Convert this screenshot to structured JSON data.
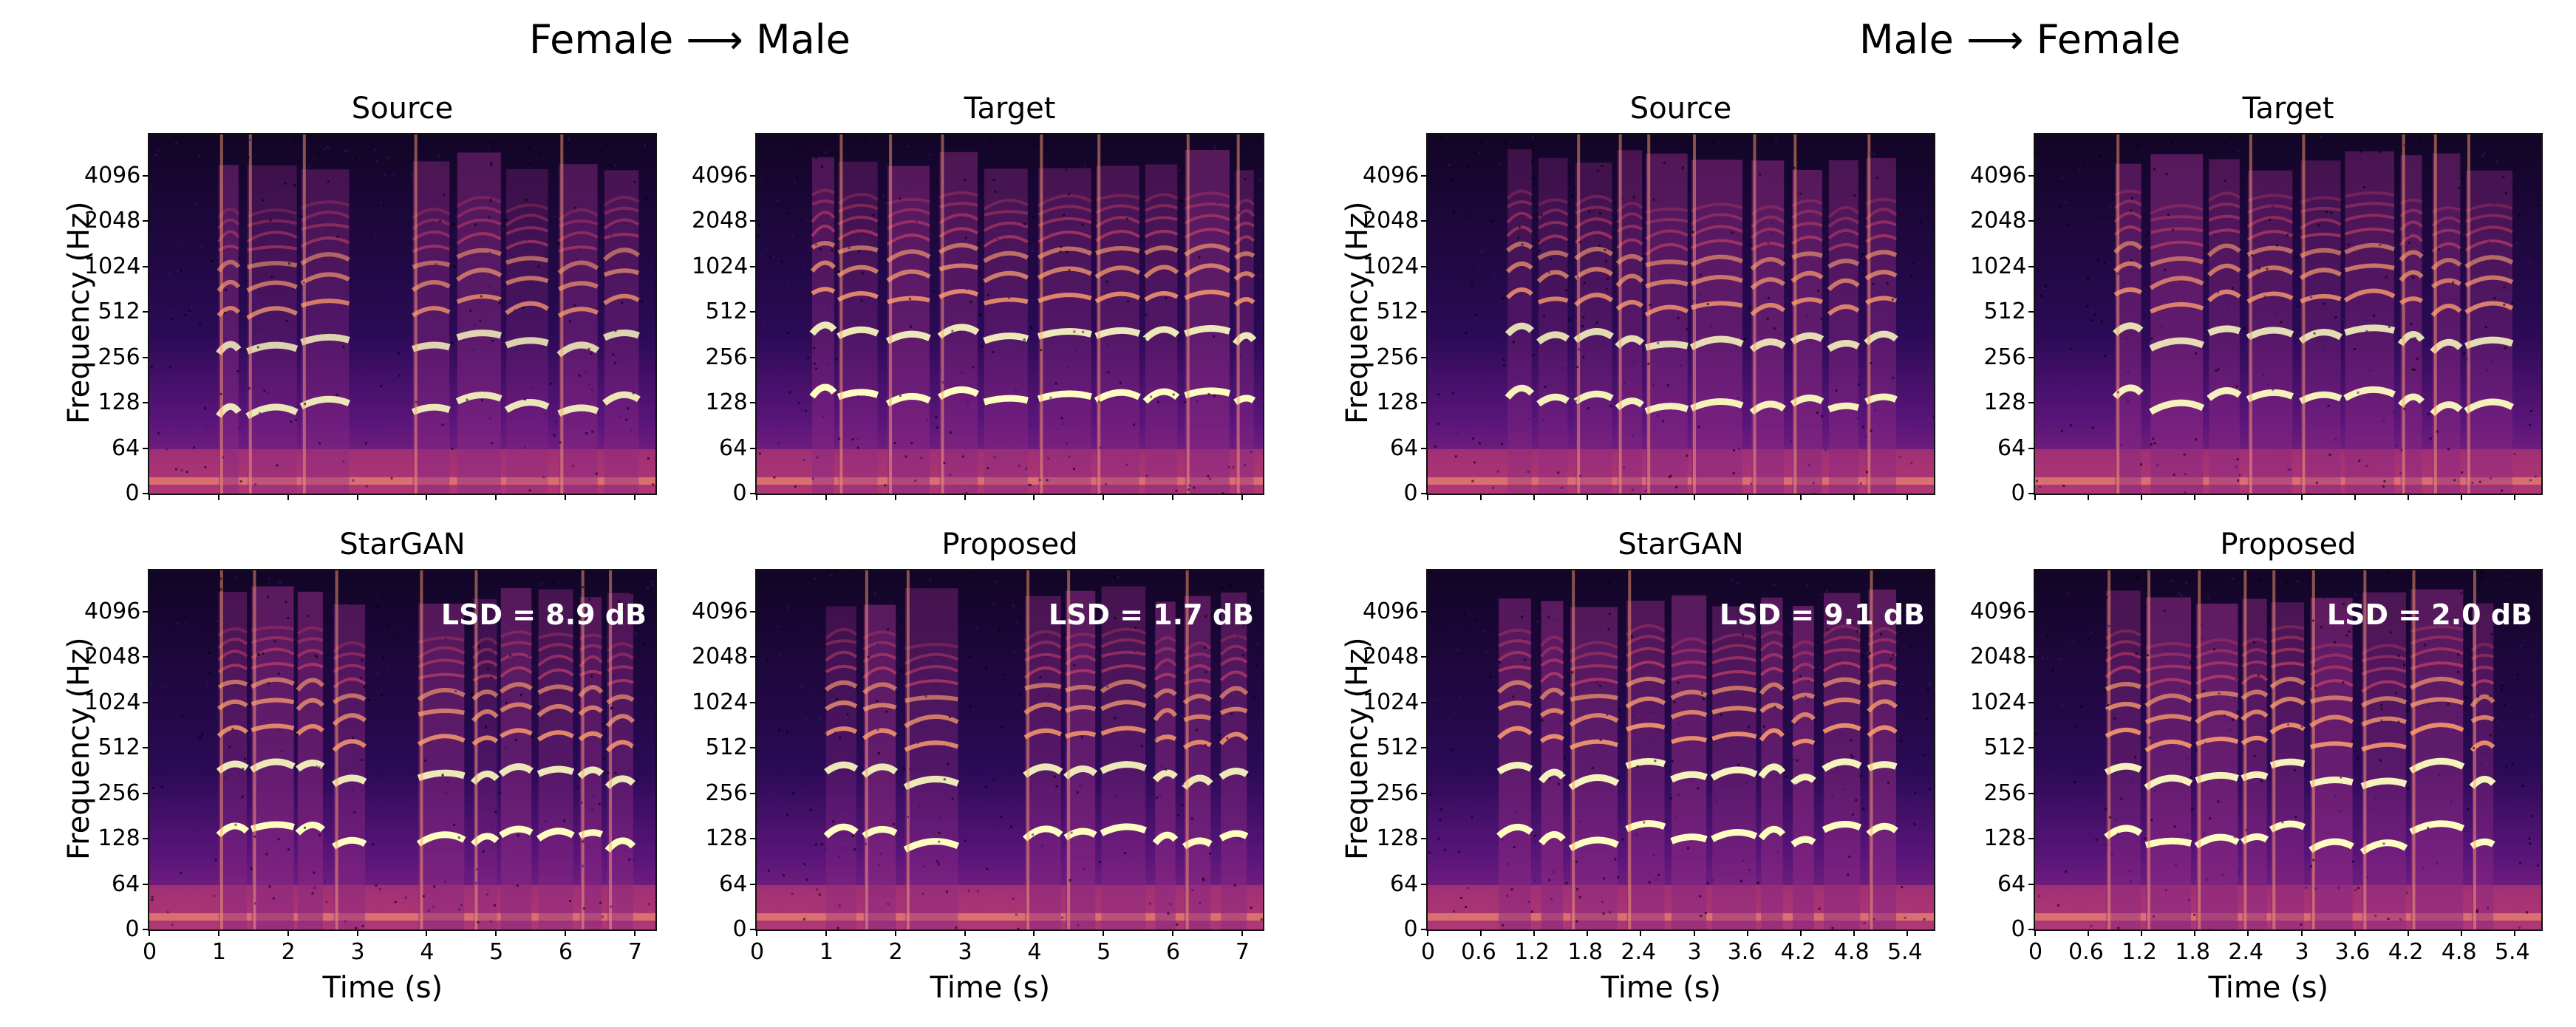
{
  "groups": [
    {
      "title": "Female ⟶ Male"
    },
    {
      "title": "Male ⟶ Female"
    }
  ],
  "labels": {
    "ylabel": "Frequency (Hz)",
    "xlabel": "Time (s)"
  },
  "colors": {
    "cmap": [
      "#0c0420",
      "#3b0f70",
      "#8c2981",
      "#de4968",
      "#fe9f6d",
      "#fcfdbf"
    ]
  },
  "chart_data": [
    {
      "type": "heatmap",
      "group": "Female ⟶ Male",
      "title": "Source",
      "ylabel": "Frequency (Hz)",
      "yticks": [
        "0",
        "64",
        "128",
        "256",
        "512",
        "1024",
        "2048",
        "4096"
      ],
      "xticks": [],
      "xlabel": "",
      "xlim": [
        0,
        7.3
      ],
      "lsd": "",
      "voice_start": 1.0,
      "voice_end": 7.1,
      "pauses": [
        3.3,
        3.55
      ],
      "f0": 1,
      "bright": 0.9
    },
    {
      "type": "heatmap",
      "group": "Female ⟶ Male",
      "title": "Target",
      "ylabel": "",
      "yticks": [
        "0",
        "64",
        "128",
        "256",
        "512",
        "1024",
        "2048",
        "4096"
      ],
      "xticks": [],
      "xlabel": "",
      "xlim": [
        0,
        7.3
      ],
      "lsd": "",
      "voice_start": 0.8,
      "voice_end": 7.2,
      "pauses": [
        3.0,
        3.5
      ],
      "f0": 0.85,
      "bright": 1.0
    },
    {
      "type": "heatmap",
      "group": "Male ⟶ Female",
      "title": "Source",
      "ylabel": "Frequency (Hz)",
      "yticks": [
        "0",
        "64",
        "128",
        "256",
        "512",
        "1024",
        "2048",
        "4096"
      ],
      "xticks": [],
      "xlabel": "",
      "xlim": [
        0,
        5.7
      ],
      "lsd": "",
      "voice_start": 0.9,
      "voice_end": 5.3,
      "pauses": [],
      "f0": 0.85,
      "bright": 0.95
    },
    {
      "type": "heatmap",
      "group": "Male ⟶ Female",
      "title": "Target",
      "ylabel": "",
      "yticks": [
        "0",
        "64",
        "128",
        "256",
        "512",
        "1024",
        "2048",
        "4096"
      ],
      "xticks": [],
      "xlabel": "",
      "xlim": [
        0,
        5.7
      ],
      "lsd": "",
      "voice_start": 0.9,
      "voice_end": 5.4,
      "pauses": [],
      "f0": 1,
      "bright": 0.95
    },
    {
      "type": "heatmap",
      "group": "Female ⟶ Male",
      "title": "StarGAN",
      "ylabel": "Frequency (Hz)",
      "yticks": [
        "0",
        "64",
        "128",
        "256",
        "512",
        "1024",
        "2048",
        "4096"
      ],
      "xticks": [
        "0",
        "1",
        "2",
        "3",
        "4",
        "5",
        "6",
        "7"
      ],
      "xlabel": "Time (s)",
      "xlim": [
        0,
        7.3
      ],
      "lsd": "LSD = 8.9 dB",
      "voice_start": 1.0,
      "voice_end": 7.1,
      "pauses": [
        3.3,
        3.55
      ],
      "f0": 0.85,
      "bright": 1.0
    },
    {
      "type": "heatmap",
      "group": "Female ⟶ Male",
      "title": "Proposed",
      "ylabel": "",
      "yticks": [
        "0",
        "64",
        "128",
        "256",
        "512",
        "1024",
        "2048",
        "4096"
      ],
      "xticks": [
        "0",
        "1",
        "2",
        "3",
        "4",
        "5",
        "6",
        "7"
      ],
      "xlabel": "Time (s)",
      "xlim": [
        0,
        7.3
      ],
      "lsd": "LSD = 1.7 dB",
      "voice_start": 1.0,
      "voice_end": 7.1,
      "pauses": [
        3.2,
        3.55
      ],
      "f0": 0.85,
      "bright": 1.0
    },
    {
      "type": "heatmap",
      "group": "Male ⟶ Female",
      "title": "StarGAN",
      "ylabel": "Frequency (Hz)",
      "yticks": [
        "0",
        "64",
        "128",
        "256",
        "512",
        "1024",
        "2048",
        "4096"
      ],
      "xticks": [
        "0",
        "0.6",
        "1.2",
        "1.8",
        "2.4",
        "3",
        "3.6",
        "4.2",
        "4.8",
        "5.4"
      ],
      "xlabel": "Time (s)",
      "xlim": [
        0,
        5.7
      ],
      "lsd": "LSD = 9.1 dB",
      "voice_start": 0.8,
      "voice_end": 5.3,
      "pauses": [],
      "f0": 1,
      "bright": 1.05
    },
    {
      "type": "heatmap",
      "group": "Male ⟶ Female",
      "title": "Proposed",
      "ylabel": "",
      "yticks": [
        "0",
        "64",
        "128",
        "256",
        "512",
        "1024",
        "2048",
        "4096"
      ],
      "xticks": [
        "0",
        "0.6",
        "1.2",
        "1.8",
        "2.4",
        "3",
        "3.6",
        "4.2",
        "4.8",
        "5.4"
      ],
      "xlabel": "Time (s)",
      "xlim": [
        0,
        5.7
      ],
      "lsd": "LSD = 2.0 dB",
      "voice_start": 0.8,
      "voice_end": 5.3,
      "pauses": [
        3.4,
        3.6
      ],
      "f0": 1,
      "bright": 1.05
    }
  ]
}
